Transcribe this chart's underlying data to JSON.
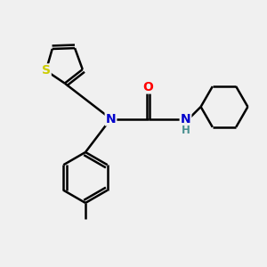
{
  "background_color": "#f0f0f0",
  "bond_color": "#000000",
  "bond_lw": 1.8,
  "atom_colors": {
    "S": "#cccc00",
    "N": "#0000cc",
    "O": "#ff0000",
    "H": "#4a9090",
    "C": "#000000"
  },
  "figsize": [
    3.0,
    3.0
  ],
  "dpi": 100,
  "xlim": [
    0,
    10
  ],
  "ylim": [
    0,
    10
  ]
}
